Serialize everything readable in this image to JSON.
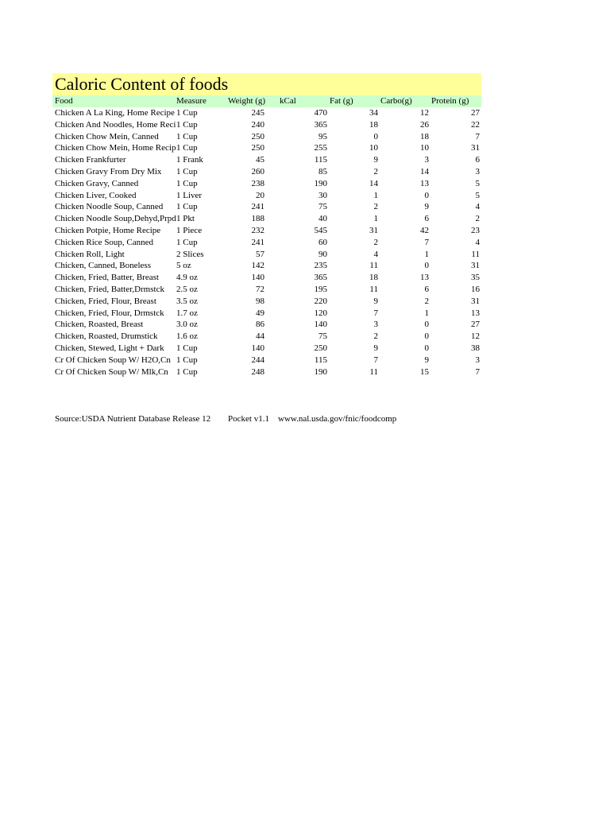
{
  "title": "Caloric Content of foods",
  "columns": [
    "Food",
    "Measure",
    "Weight (g)",
    "kCal",
    "Fat (g)",
    "Carbo(g)",
    "Protein (g)"
  ],
  "rows": [
    [
      "Chicken A La King, Home Recipe",
      "1 Cup",
      "245",
      "470",
      "34",
      "12",
      "27"
    ],
    [
      "Chicken And Noodles, Home Recipe",
      "1 Cup",
      "240",
      "365",
      "18",
      "26",
      "22"
    ],
    [
      "Chicken Chow Mein, Canned",
      "1 Cup",
      "250",
      "95",
      "0",
      "18",
      "7"
    ],
    [
      "Chicken Chow Mein, Home Recipe",
      "1 Cup",
      "250",
      "255",
      "10",
      "10",
      "31"
    ],
    [
      "Chicken Frankfurter",
      "1 Frank",
      "45",
      "115",
      "9",
      "3",
      "6"
    ],
    [
      "Chicken Gravy From Dry Mix",
      "1 Cup",
      "260",
      "85",
      "2",
      "14",
      "3"
    ],
    [
      "Chicken Gravy, Canned",
      "1 Cup",
      "238",
      "190",
      "14",
      "13",
      "5"
    ],
    [
      "Chicken Liver, Cooked",
      "1 Liver",
      "20",
      "30",
      "1",
      "0",
      "5"
    ],
    [
      "Chicken Noodle Soup, Canned",
      "1 Cup",
      "241",
      "75",
      "2",
      "9",
      "4"
    ],
    [
      "Chicken Noodle Soup,Dehyd,Prpd",
      "1 Pkt",
      "188",
      "40",
      "1",
      "6",
      "2"
    ],
    [
      "Chicken Potpie, Home Recipe",
      "1 Piece",
      "232",
      "545",
      "31",
      "42",
      "23"
    ],
    [
      "Chicken Rice Soup, Canned",
      "1 Cup",
      "241",
      "60",
      "2",
      "7",
      "4"
    ],
    [
      "Chicken Roll, Light",
      "2 Slices",
      "57",
      "90",
      "4",
      "1",
      "11"
    ],
    [
      "Chicken, Canned, Boneless",
      "5 oz",
      "142",
      "235",
      "11",
      "0",
      "31"
    ],
    [
      "Chicken, Fried, Batter, Breast",
      "4.9 oz",
      "140",
      "365",
      "18",
      "13",
      "35"
    ],
    [
      "Chicken, Fried, Batter,Drmstck",
      "2.5 oz",
      "72",
      "195",
      "11",
      "6",
      "16"
    ],
    [
      "Chicken, Fried, Flour, Breast",
      "3.5 oz",
      "98",
      "220",
      "9",
      "2",
      "31"
    ],
    [
      "Chicken, Fried, Flour, Drmstck",
      "1.7 oz",
      "49",
      "120",
      "7",
      "1",
      "13"
    ],
    [
      "Chicken, Roasted, Breast",
      "3.0 oz",
      "86",
      "140",
      "3",
      "0",
      "27"
    ],
    [
      "Chicken, Roasted, Drumstick",
      "1.6 oz",
      "44",
      "75",
      "2",
      "0",
      "12"
    ],
    [
      "Chicken, Stewed, Light + Dark",
      "1 Cup",
      "140",
      "250",
      "9",
      "0",
      "38"
    ],
    [
      "Cr Of Chicken Soup W/ H2O,Cn",
      "1 Cup",
      "244",
      "115",
      "7",
      "9",
      "3"
    ],
    [
      "Cr Of Chicken Soup W/ Mlk,Cn",
      "1 Cup",
      "248",
      "190",
      "11",
      "15",
      "7"
    ]
  ],
  "footer": {
    "source": "Source:USDA Nutrient Database Release 12",
    "version": "Pocket v1.1",
    "url": "www.nal.usda.gov/fnic/foodcomp"
  },
  "colors": {
    "title_bg": "#ffff99",
    "header_bg": "#ccffcc"
  }
}
